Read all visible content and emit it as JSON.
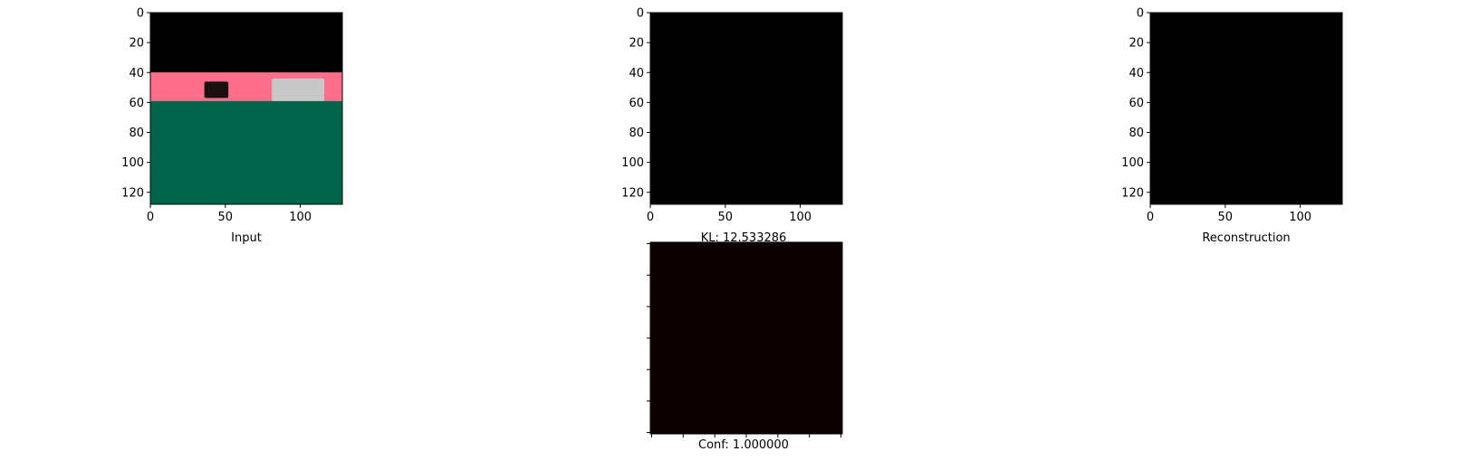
{
  "chart_data": [
    {
      "type": "image",
      "xlabel": "Input",
      "x_ticks": [
        0,
        50,
        100
      ],
      "y_ticks": [
        0,
        20,
        40,
        60,
        80,
        100,
        120
      ],
      "xlim": [
        0,
        128
      ],
      "ylim": [
        128,
        0
      ],
      "bands": [
        {
          "y_from": 0,
          "y_to": 40,
          "color": "#000000"
        },
        {
          "y_from": 40,
          "y_to": 59,
          "color": "#fe6d8a"
        },
        {
          "y_from": 59,
          "y_to": 128,
          "color": "#01654b"
        }
      ],
      "objects": [
        {
          "name": "dark-box-object",
          "x": 36,
          "y": 46,
          "w": 16,
          "h": 11,
          "color": "#1a1010"
        },
        {
          "name": "white-car-object",
          "x": 81,
          "y": 44,
          "w": 35,
          "h": 15,
          "color": "#c8c8c8"
        }
      ]
    },
    {
      "type": "image",
      "xlabel": "KL: 12.533286",
      "x_ticks": [
        0,
        50,
        100
      ],
      "y_ticks": [
        0,
        20,
        40,
        60,
        80,
        100,
        120
      ],
      "xlim": [
        0,
        128
      ],
      "ylim": [
        128,
        0
      ],
      "fill": "#000000"
    },
    {
      "type": "image",
      "xlabel": "Reconstruction",
      "x_ticks": [
        0,
        50,
        100
      ],
      "y_ticks": [
        0,
        20,
        40,
        60,
        80,
        100,
        120
      ],
      "xlim": [
        0,
        128
      ],
      "ylim": [
        128,
        0
      ],
      "fill": "#000000"
    },
    {
      "type": "heatmap",
      "xlabel": "Conf: 1.000000",
      "x_tick_count": 7,
      "y_tick_count": 7,
      "fill": "#0d0000"
    }
  ]
}
